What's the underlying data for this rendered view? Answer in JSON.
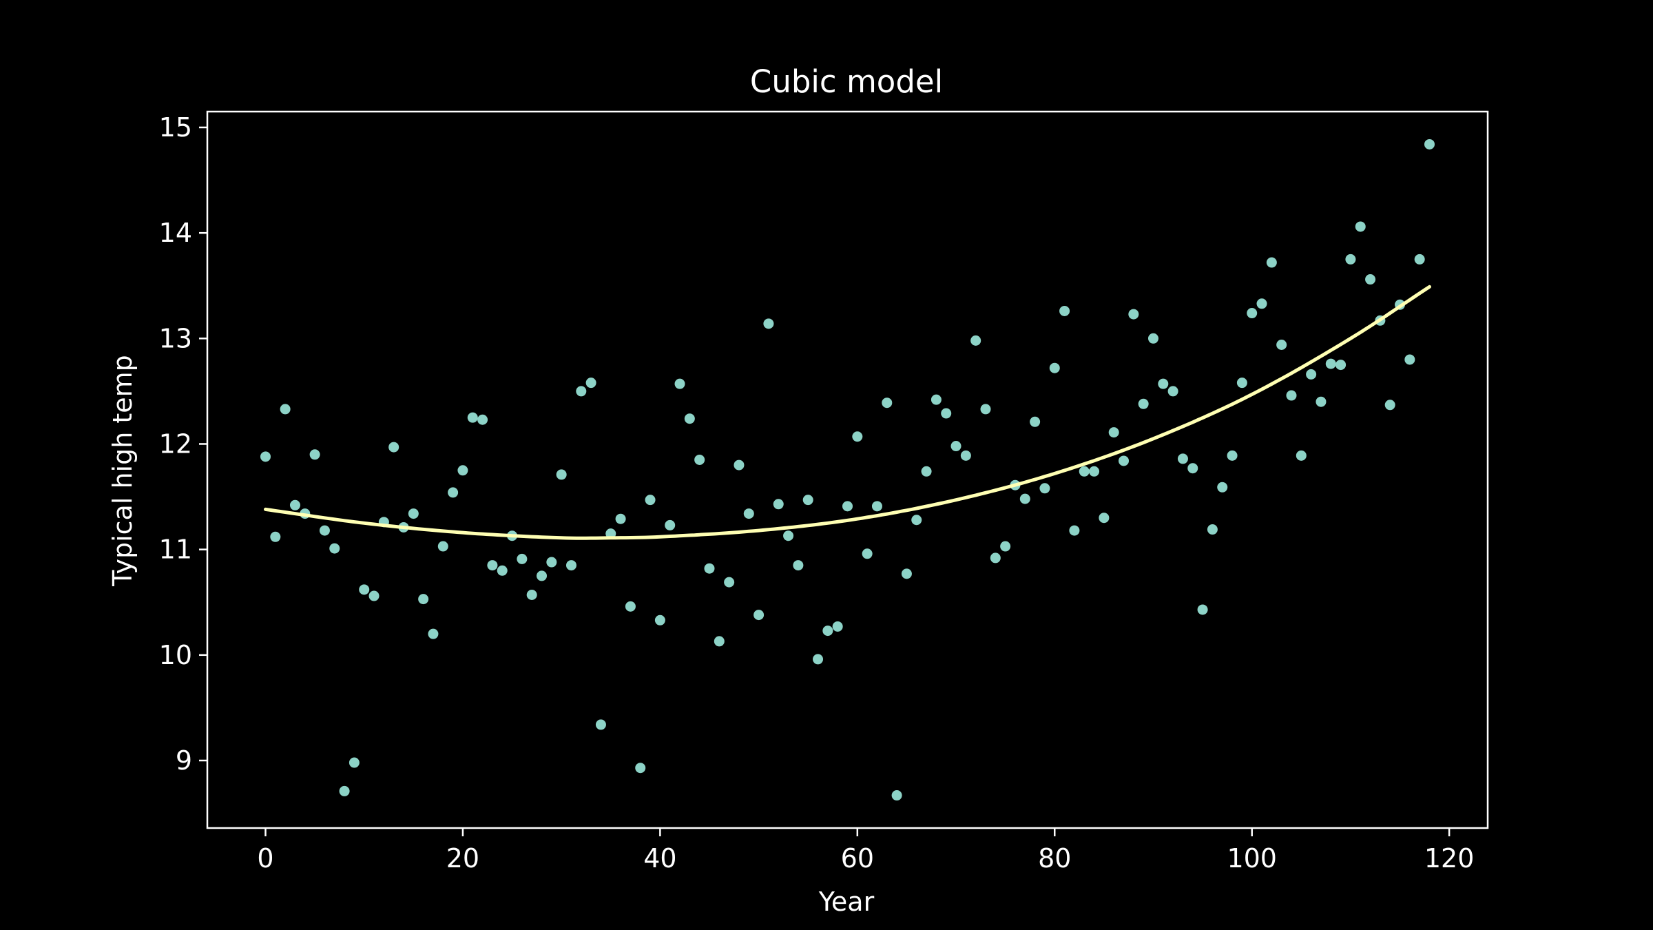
{
  "colors": {
    "background": "#000000",
    "axes": "#ffffff",
    "points": "#8dd3c7",
    "fit_line": "#ffffb3"
  },
  "chart_data": {
    "type": "scatter",
    "title": "Cubic model",
    "xlabel": "Year",
    "ylabel": "Typical high temp",
    "xlim": [
      -5.9,
      123.9
    ],
    "ylim": [
      8.36,
      15.15
    ],
    "xticks": [
      0,
      20,
      40,
      60,
      80,
      100,
      120
    ],
    "yticks": [
      9,
      10,
      11,
      12,
      13,
      14,
      15
    ],
    "grid": false,
    "legend": "none",
    "series": [
      {
        "kind": "points",
        "x": [
          0,
          1,
          2,
          3,
          4,
          5,
          6,
          7,
          8,
          9,
          10,
          11,
          12,
          13,
          14,
          15,
          16,
          17,
          18,
          19,
          20,
          21,
          22,
          23,
          24,
          25,
          26,
          27,
          28,
          29,
          30,
          31,
          32,
          33,
          34,
          35,
          36,
          37,
          38,
          39,
          40,
          41,
          42,
          43,
          44,
          45,
          46,
          47,
          48,
          49,
          50,
          51,
          52,
          53,
          54,
          55,
          56,
          57,
          58,
          59,
          60,
          61,
          62,
          63,
          64,
          65,
          66,
          67,
          68,
          69,
          70,
          71,
          72,
          73,
          74,
          75,
          76,
          77,
          78,
          79,
          80,
          81,
          82,
          83,
          84,
          85,
          86,
          87,
          88,
          89,
          90,
          91,
          92,
          93,
          94,
          95,
          96,
          97,
          98,
          99,
          100,
          101,
          102,
          103,
          104,
          105,
          106,
          107,
          108,
          109,
          110,
          111,
          112,
          113,
          114,
          115,
          116,
          117,
          118
        ],
        "y": [
          11.88,
          11.12,
          12.33,
          11.42,
          11.34,
          11.9,
          11.18,
          11.01,
          8.71,
          8.98,
          10.62,
          10.56,
          11.26,
          11.97,
          11.21,
          11.34,
          10.53,
          10.2,
          11.03,
          11.54,
          11.75,
          12.25,
          12.23,
          10.85,
          10.8,
          11.13,
          10.91,
          10.57,
          10.75,
          10.88,
          11.71,
          10.85,
          12.5,
          12.58,
          9.34,
          11.15,
          11.29,
          10.46,
          8.93,
          11.47,
          10.33,
          11.23,
          12.57,
          12.24,
          11.85,
          10.82,
          10.13,
          10.69,
          11.8,
          11.34,
          10.38,
          13.14,
          11.43,
          11.13,
          10.85,
          11.47,
          9.96,
          10.23,
          10.27,
          11.41,
          12.07,
          10.96,
          11.41,
          12.39,
          8.67,
          10.77,
          11.28,
          11.74,
          12.42,
          12.29,
          11.98,
          11.89,
          12.98,
          12.33,
          10.92,
          11.03,
          11.61,
          11.48,
          12.21,
          11.58,
          12.72,
          13.26,
          11.18,
          11.74,
          11.74,
          11.3,
          12.11,
          11.84,
          13.23,
          12.38,
          13.0,
          12.57,
          12.5,
          11.86,
          11.77,
          10.43,
          11.19,
          11.59,
          11.89,
          12.58,
          13.24,
          13.33,
          13.72,
          12.94,
          12.46,
          11.89,
          12.66,
          12.4,
          12.76,
          12.75,
          13.75,
          14.06,
          13.56,
          13.17,
          12.37,
          13.32,
          12.8,
          13.75,
          14.84
        ]
      },
      {
        "kind": "fit",
        "x": [
          0,
          10,
          20,
          30,
          35,
          40,
          50,
          60,
          70,
          80,
          90,
          100,
          110,
          118
        ],
        "y": [
          11.38,
          11.25,
          11.16,
          11.11,
          11.11,
          11.12,
          11.18,
          11.29,
          11.47,
          11.72,
          12.05,
          12.47,
          13.0,
          13.49
        ]
      }
    ]
  }
}
